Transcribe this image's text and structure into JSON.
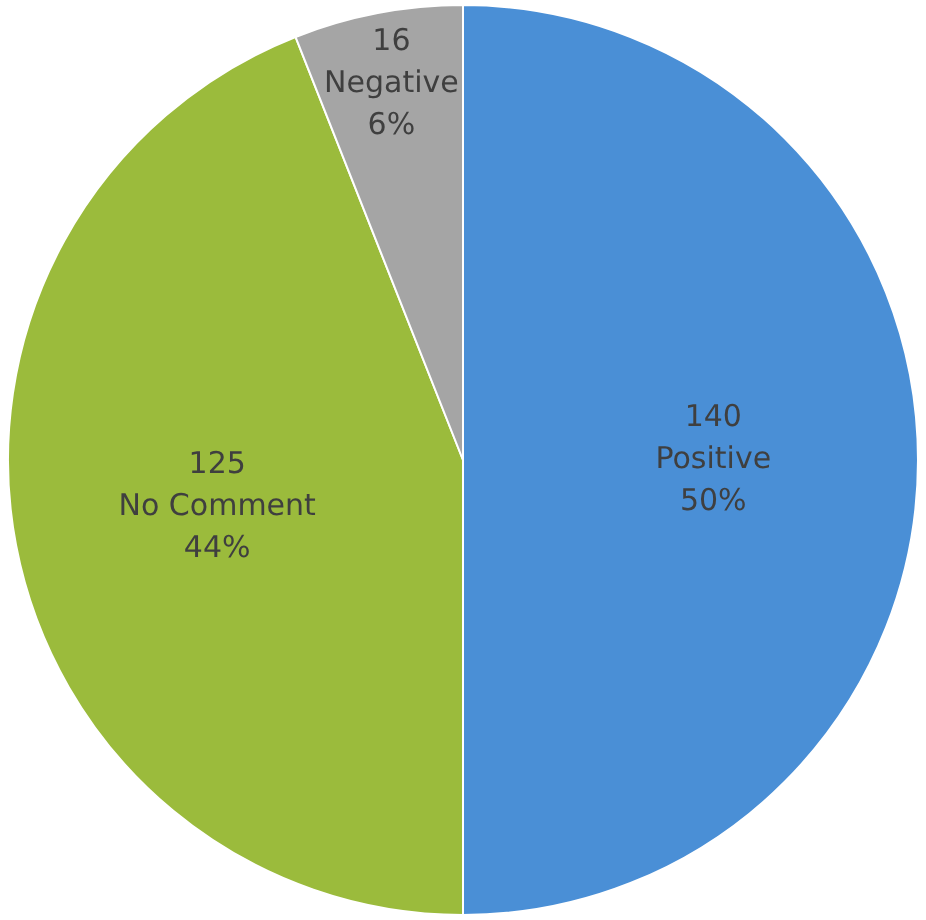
{
  "chart_data": {
    "type": "pie",
    "categories": [
      "Positive",
      "No Comment",
      "Negative"
    ],
    "values": [
      50,
      44,
      6
    ],
    "value_labels": [
      "50%",
      "44%",
      "6%"
    ],
    "annotations": [
      "140",
      "125",
      "16"
    ],
    "colors": [
      "#4a8fd6",
      "#9bbb3c",
      "#a5a5a5"
    ],
    "legend": false
  }
}
